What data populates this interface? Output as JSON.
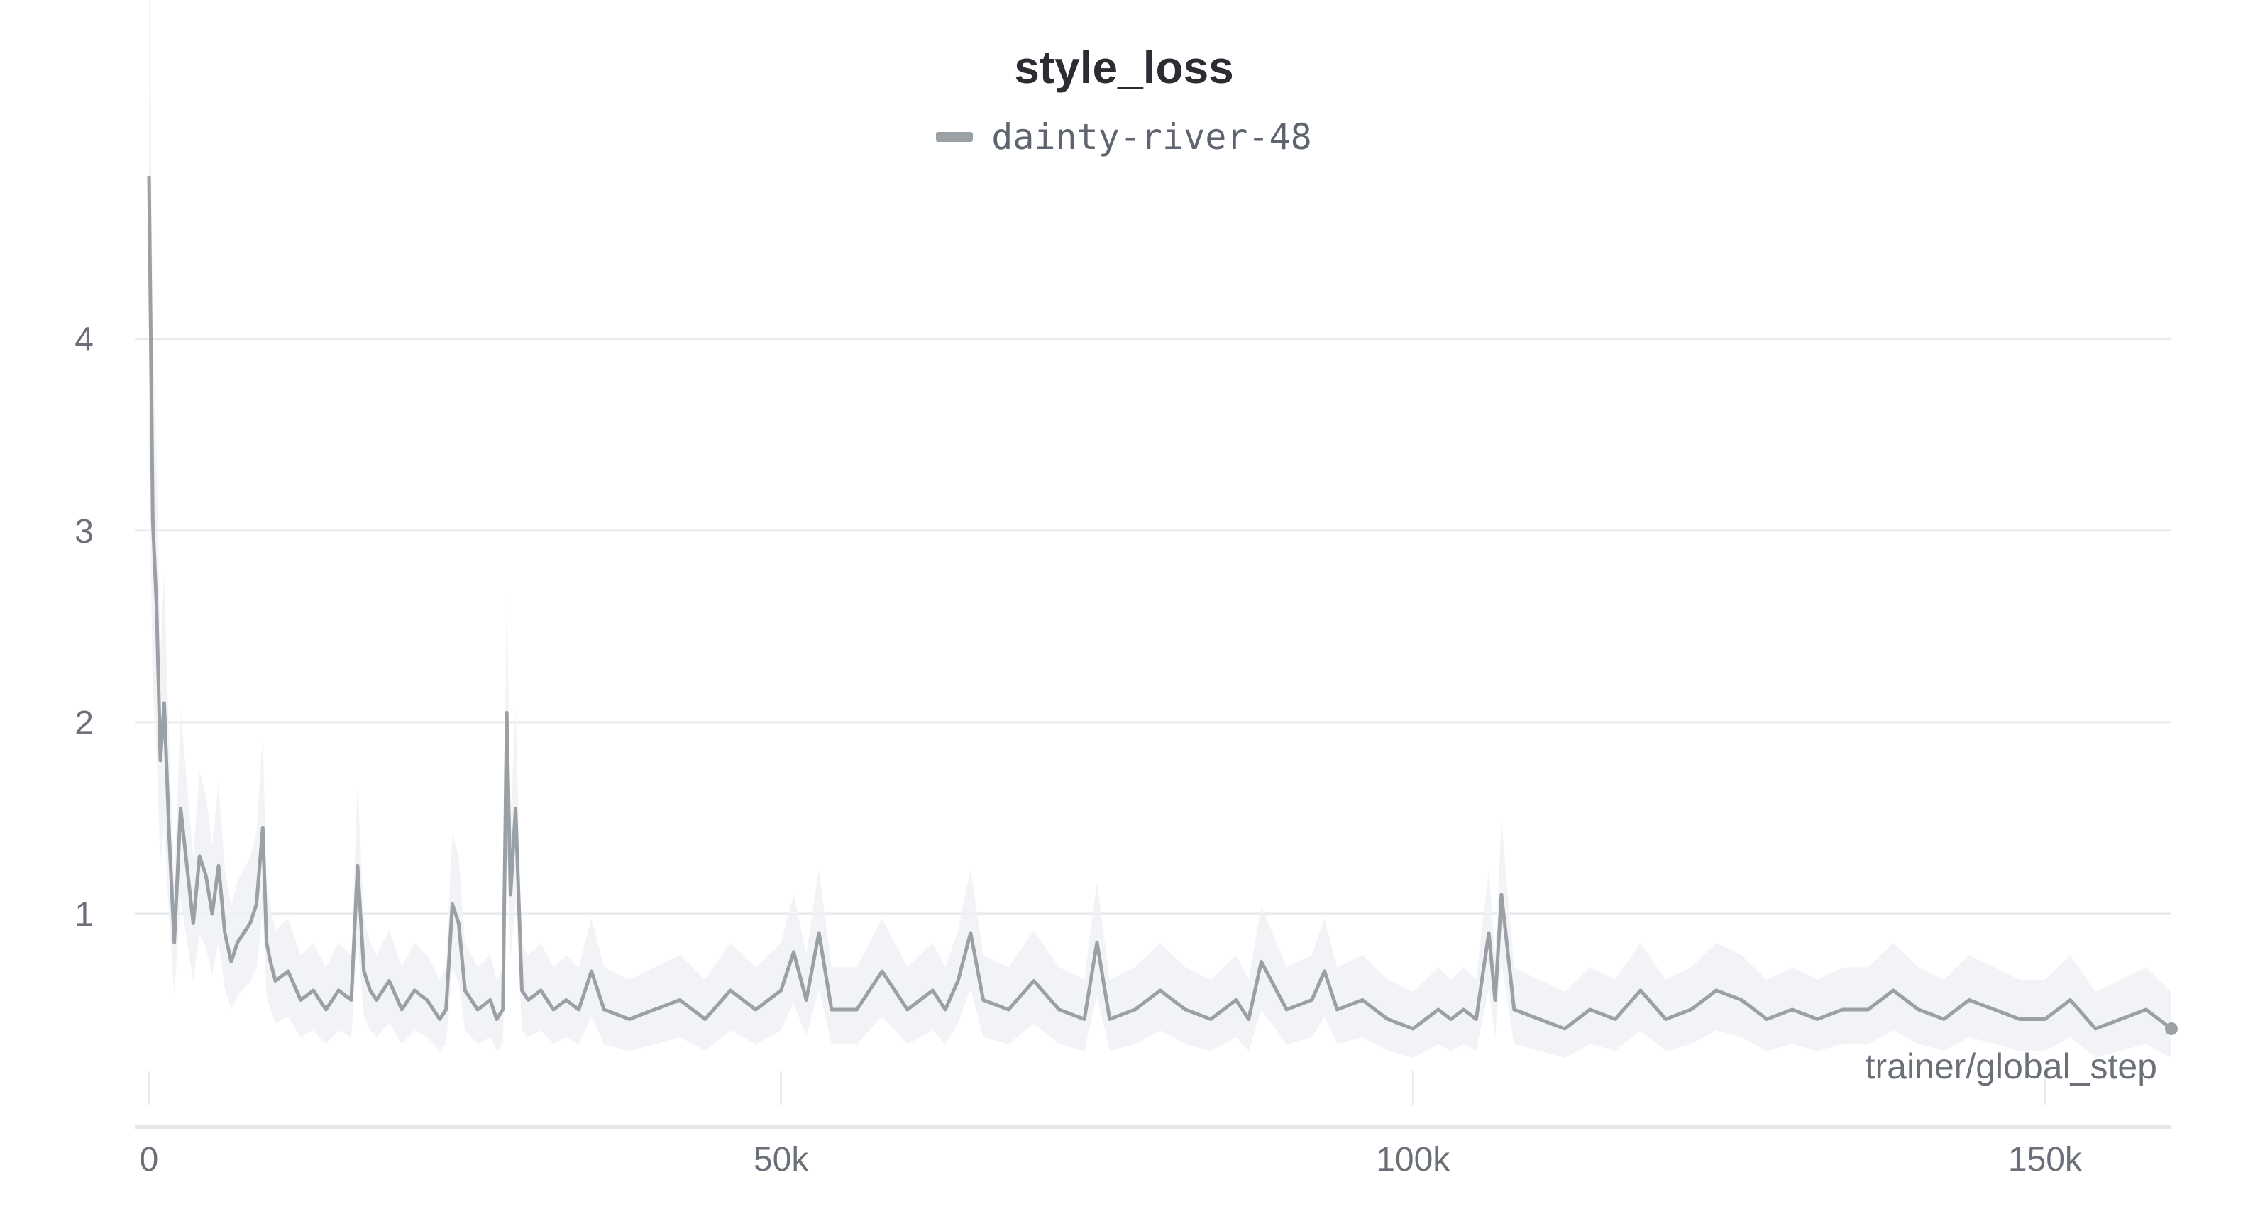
{
  "chart_data": {
    "type": "line",
    "title": "style_loss",
    "xlabel": "trainer/global_step",
    "ylabel": "",
    "xlim": [
      0,
      160000
    ],
    "ylim": [
      0,
      4.88
    ],
    "x_ticks": [
      0,
      50000,
      100000,
      150000
    ],
    "x_tick_labels": [
      "0",
      "50k",
      "100k",
      "150k"
    ],
    "y_ticks": [
      1,
      2,
      3,
      4
    ],
    "y_tick_labels": [
      "1",
      "2",
      "3",
      "4"
    ],
    "grid": true,
    "legend": "top-center",
    "series": [
      {
        "name": "dainty-river-48",
        "color": "#9aa0a4",
        "x": [
          0,
          300,
          600,
          900,
          1200,
          1600,
          2000,
          2500,
          3000,
          3500,
          4000,
          4500,
          5000,
          5500,
          6000,
          6500,
          7000,
          7500,
          8000,
          8500,
          9000,
          9300,
          9600,
          10000,
          11000,
          12000,
          13000,
          14000,
          15000,
          16000,
          16500,
          17000,
          17500,
          18000,
          19000,
          20000,
          21000,
          22000,
          23000,
          23500,
          24000,
          24500,
          25000,
          26000,
          27000,
          27500,
          28000,
          28300,
          28600,
          29000,
          29500,
          30000,
          31000,
          32000,
          33000,
          34000,
          35000,
          36000,
          38000,
          40000,
          42000,
          44000,
          46000,
          48000,
          49000,
          50000,
          51000,
          52000,
          53000,
          54000,
          56000,
          58000,
          60000,
          62000,
          63000,
          64000,
          65000,
          66000,
          68000,
          70000,
          72000,
          74000,
          75000,
          76000,
          78000,
          80000,
          82000,
          84000,
          86000,
          87000,
          88000,
          90000,
          92000,
          93000,
          94000,
          96000,
          98000,
          100000,
          102000,
          103000,
          104000,
          105000,
          106000,
          106500,
          107000,
          108000,
          110000,
          112000,
          114000,
          116000,
          118000,
          120000,
          122000,
          124000,
          126000,
          128000,
          130000,
          132000,
          134000,
          136000,
          138000,
          140000,
          142000,
          144000,
          146000,
          148000,
          150000,
          152000,
          154000,
          156000,
          158000,
          160000
        ],
        "values": [
          4.85,
          3.05,
          2.6,
          1.8,
          2.1,
          1.4,
          0.85,
          1.55,
          1.25,
          0.95,
          1.3,
          1.2,
          1.0,
          1.25,
          0.9,
          0.75,
          0.85,
          0.9,
          0.95,
          1.05,
          1.45,
          0.85,
          0.75,
          0.65,
          0.7,
          0.55,
          0.6,
          0.5,
          0.6,
          0.55,
          1.25,
          0.7,
          0.6,
          0.55,
          0.65,
          0.5,
          0.6,
          0.55,
          0.45,
          0.5,
          1.05,
          0.95,
          0.6,
          0.5,
          0.55,
          0.45,
          0.5,
          2.05,
          1.1,
          1.55,
          0.6,
          0.55,
          0.6,
          0.5,
          0.55,
          0.5,
          0.7,
          0.5,
          0.45,
          0.5,
          0.55,
          0.45,
          0.6,
          0.5,
          0.55,
          0.6,
          0.8,
          0.55,
          0.9,
          0.5,
          0.5,
          0.7,
          0.5,
          0.6,
          0.5,
          0.65,
          0.9,
          0.55,
          0.5,
          0.65,
          0.5,
          0.45,
          0.85,
          0.45,
          0.5,
          0.6,
          0.5,
          0.45,
          0.55,
          0.45,
          0.75,
          0.5,
          0.55,
          0.7,
          0.5,
          0.55,
          0.45,
          0.4,
          0.5,
          0.45,
          0.5,
          0.45,
          0.9,
          0.55,
          1.1,
          0.5,
          0.45,
          0.4,
          0.5,
          0.45,
          0.6,
          0.45,
          0.5,
          0.6,
          0.55,
          0.45,
          0.5,
          0.45,
          0.5,
          0.5,
          0.6,
          0.5,
          0.45,
          0.55,
          0.5,
          0.45,
          0.45,
          0.55,
          0.4,
          0.45,
          0.5,
          0.4
        ]
      }
    ]
  }
}
